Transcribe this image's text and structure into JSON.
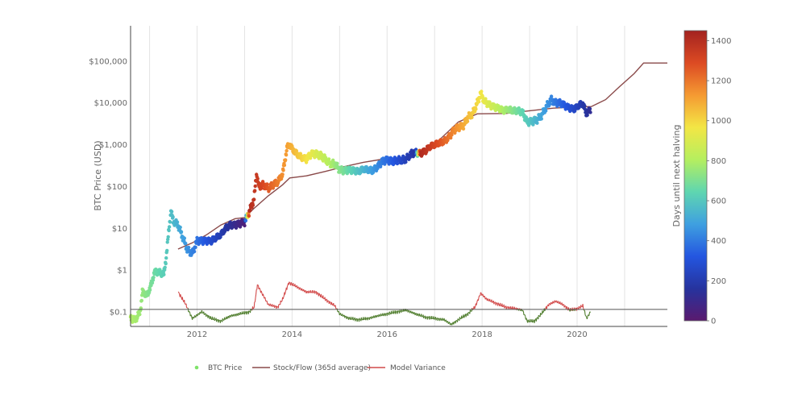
{
  "chart_data": {
    "type": "scatter",
    "title": "",
    "ylabel": "BTC Price (USD)",
    "xlabel": "",
    "ylog": true,
    "ylim": [
      0.045,
      700000
    ],
    "xlim": [
      2010.6,
      2021.9
    ],
    "grid": "vertical",
    "x_ticks": [
      2012,
      2014,
      2016,
      2018,
      2020
    ],
    "x_tick_labels": [
      "2012",
      "2014",
      "2016",
      "2018",
      "2020"
    ],
    "y_ticks": [
      0.1,
      1,
      10,
      100,
      1000,
      10000,
      100000
    ],
    "y_tick_labels": [
      "$0.1",
      "$1",
      "$10",
      "$100",
      "$1,000",
      "$10,000",
      "$100,000"
    ],
    "reference_line": 0.115,
    "colorbar": {
      "label": "Days until next halving",
      "min": 0,
      "max": 1450,
      "ticks": [
        0,
        200,
        400,
        600,
        800,
        1000,
        1200,
        1400
      ],
      "colors": [
        "#5a1a6e",
        "#26339e",
        "#2456e0",
        "#3fa0e0",
        "#5fd6b0",
        "#b5ef5f",
        "#f3e645",
        "#f59a32",
        "#dc4a23",
        "#a32220"
      ]
    },
    "legend_position": "bottom",
    "series": [
      {
        "name": "BTC Price",
        "color": "#7fe36a",
        "style": "markers",
        "points": [
          [
            2010.6,
            0.07,
            800
          ],
          [
            2010.7,
            0.065,
            780
          ],
          [
            2010.8,
            0.1,
            760
          ],
          [
            2010.85,
            0.3,
            745
          ],
          [
            2010.95,
            0.25,
            720
          ],
          [
            2011.05,
            0.5,
            690
          ],
          [
            2011.1,
            0.9,
            670
          ],
          [
            2011.2,
            0.9,
            650
          ],
          [
            2011.3,
            0.8,
            620
          ],
          [
            2011.35,
            2,
            605
          ],
          [
            2011.4,
            8,
            590
          ],
          [
            2011.45,
            25,
            575
          ],
          [
            2011.5,
            15,
            560
          ],
          [
            2011.6,
            12,
            525
          ],
          [
            2011.7,
            6,
            490
          ],
          [
            2011.8,
            3,
            455
          ],
          [
            2011.9,
            2.5,
            420
          ],
          [
            2012.0,
            5,
            385
          ],
          [
            2012.1,
            5,
            350
          ],
          [
            2012.2,
            5,
            315
          ],
          [
            2012.3,
            5,
            280
          ],
          [
            2012.4,
            6,
            245
          ],
          [
            2012.5,
            7,
            210
          ],
          [
            2012.6,
            10,
            175
          ],
          [
            2012.7,
            12,
            140
          ],
          [
            2012.8,
            12,
            105
          ],
          [
            2012.9,
            13,
            70
          ],
          [
            2013.0,
            14,
            40
          ],
          [
            2013.1,
            25,
            1410
          ],
          [
            2013.2,
            50,
            1370
          ],
          [
            2013.25,
            200,
            1350
          ],
          [
            2013.3,
            100,
            1335
          ],
          [
            2013.4,
            110,
            1300
          ],
          [
            2013.5,
            90,
            1260
          ],
          [
            2013.6,
            110,
            1225
          ],
          [
            2013.7,
            130,
            1190
          ],
          [
            2013.8,
            200,
            1150
          ],
          [
            2013.9,
            900,
            1115
          ],
          [
            2013.95,
            1000,
            1100
          ],
          [
            2014.0,
            800,
            1080
          ],
          [
            2014.1,
            600,
            1045
          ],
          [
            2014.2,
            500,
            1010
          ],
          [
            2014.3,
            450,
            975
          ],
          [
            2014.4,
            600,
            940
          ],
          [
            2014.5,
            600,
            900
          ],
          [
            2014.6,
            550,
            870
          ],
          [
            2014.7,
            450,
            830
          ],
          [
            2014.8,
            350,
            800
          ],
          [
            2014.9,
            350,
            760
          ],
          [
            2015.0,
            250,
            720
          ],
          [
            2015.1,
            240,
            690
          ],
          [
            2015.2,
            250,
            650
          ],
          [
            2015.3,
            240,
            615
          ],
          [
            2015.4,
            230,
            580
          ],
          [
            2015.5,
            260,
            545
          ],
          [
            2015.6,
            250,
            510
          ],
          [
            2015.7,
            240,
            475
          ],
          [
            2015.8,
            300,
            440
          ],
          [
            2015.9,
            400,
            400
          ],
          [
            2016.0,
            430,
            370
          ],
          [
            2016.1,
            400,
            335
          ],
          [
            2016.2,
            420,
            300
          ],
          [
            2016.3,
            430,
            265
          ],
          [
            2016.4,
            450,
            225
          ],
          [
            2016.5,
            600,
            190
          ],
          [
            2016.6,
            650,
            160
          ],
          [
            2016.7,
            620,
            1420
          ],
          [
            2016.8,
            700,
            1385
          ],
          [
            2016.9,
            900,
            1350
          ],
          [
            2017.0,
            1000,
            1310
          ],
          [
            2017.1,
            1100,
            1280
          ],
          [
            2017.2,
            1200,
            1240
          ],
          [
            2017.3,
            1500,
            1205
          ],
          [
            2017.4,
            2200,
            1170
          ],
          [
            2017.5,
            2600,
            1135
          ],
          [
            2017.6,
            2800,
            1100
          ],
          [
            2017.7,
            4500,
            1065
          ],
          [
            2017.8,
            5500,
            1030
          ],
          [
            2017.9,
            10000,
            995
          ],
          [
            2017.97,
            17000,
            970
          ],
          [
            2018.05,
            11000,
            935
          ],
          [
            2018.15,
            9000,
            900
          ],
          [
            2018.25,
            8000,
            860
          ],
          [
            2018.35,
            7500,
            825
          ],
          [
            2018.45,
            6500,
            790
          ],
          [
            2018.55,
            7000,
            755
          ],
          [
            2018.65,
            6500,
            720
          ],
          [
            2018.75,
            6500,
            680
          ],
          [
            2018.85,
            6000,
            645
          ],
          [
            2018.95,
            3500,
            610
          ],
          [
            2019.05,
            3600,
            575
          ],
          [
            2019.15,
            3900,
            540
          ],
          [
            2019.25,
            5000,
            505
          ],
          [
            2019.35,
            8000,
            470
          ],
          [
            2019.45,
            12000,
            430
          ],
          [
            2019.55,
            10000,
            395
          ],
          [
            2019.65,
            10000,
            360
          ],
          [
            2019.75,
            8500,
            325
          ],
          [
            2019.85,
            7500,
            290
          ],
          [
            2019.95,
            7200,
            255
          ],
          [
            2020.05,
            9000,
            220
          ],
          [
            2020.12,
            9500,
            190
          ],
          [
            2020.2,
            5500,
            160
          ],
          [
            2020.28,
            7000,
            130
          ]
        ]
      },
      {
        "name": "Stock/Flow (365d average)",
        "color": "#8a4a4a",
        "style": "line",
        "points": [
          [
            2011.6,
            3.2
          ],
          [
            2011.9,
            4.5
          ],
          [
            2012.2,
            7
          ],
          [
            2012.5,
            12
          ],
          [
            2012.8,
            17
          ],
          [
            2013.0,
            18
          ],
          [
            2013.2,
            30
          ],
          [
            2013.5,
            60
          ],
          [
            2013.8,
            110
          ],
          [
            2013.95,
            160
          ],
          [
            2014.3,
            180
          ],
          [
            2014.7,
            230
          ],
          [
            2015.1,
            300
          ],
          [
            2015.5,
            380
          ],
          [
            2015.9,
            450
          ],
          [
            2016.3,
            480
          ],
          [
            2016.5,
            500
          ],
          [
            2016.8,
            700
          ],
          [
            2017.1,
            1300
          ],
          [
            2017.5,
            3500
          ],
          [
            2017.9,
            5500
          ],
          [
            2018.5,
            5600
          ],
          [
            2019.0,
            6500
          ],
          [
            2019.5,
            7500
          ],
          [
            2020.0,
            8000
          ],
          [
            2020.3,
            8200
          ],
          [
            2020.6,
            12000
          ],
          [
            2020.9,
            25000
          ],
          [
            2021.2,
            50000
          ],
          [
            2021.4,
            90000
          ],
          [
            2021.9,
            90000
          ]
        ]
      },
      {
        "name": "Model Variance",
        "color": "#d24a4a",
        "color_below": "#4f7d2d",
        "style": "line",
        "points": [
          [
            2011.6,
            0.3
          ],
          [
            2011.75,
            0.16
          ],
          [
            2011.9,
            0.07
          ],
          [
            2012.1,
            0.1
          ],
          [
            2012.3,
            0.07
          ],
          [
            2012.5,
            0.06
          ],
          [
            2012.7,
            0.08
          ],
          [
            2012.9,
            0.09
          ],
          [
            2013.1,
            0.1
          ],
          [
            2013.2,
            0.13
          ],
          [
            2013.27,
            0.45
          ],
          [
            2013.35,
            0.3
          ],
          [
            2013.5,
            0.15
          ],
          [
            2013.7,
            0.13
          ],
          [
            2013.8,
            0.2
          ],
          [
            2013.93,
            0.5
          ],
          [
            2014.1,
            0.4
          ],
          [
            2014.3,
            0.3
          ],
          [
            2014.5,
            0.3
          ],
          [
            2014.7,
            0.2
          ],
          [
            2014.9,
            0.14
          ],
          [
            2015.0,
            0.09
          ],
          [
            2015.2,
            0.07
          ],
          [
            2015.4,
            0.065
          ],
          [
            2015.6,
            0.07
          ],
          [
            2015.8,
            0.08
          ],
          [
            2016.0,
            0.09
          ],
          [
            2016.2,
            0.1
          ],
          [
            2016.4,
            0.11
          ],
          [
            2016.6,
            0.09
          ],
          [
            2016.8,
            0.075
          ],
          [
            2017.0,
            0.07
          ],
          [
            2017.2,
            0.065
          ],
          [
            2017.35,
            0.05
          ],
          [
            2017.5,
            0.065
          ],
          [
            2017.7,
            0.09
          ],
          [
            2017.85,
            0.13
          ],
          [
            2017.97,
            0.28
          ],
          [
            2018.1,
            0.2
          ],
          [
            2018.3,
            0.16
          ],
          [
            2018.5,
            0.13
          ],
          [
            2018.7,
            0.12
          ],
          [
            2018.85,
            0.11
          ],
          [
            2018.95,
            0.06
          ],
          [
            2019.1,
            0.06
          ],
          [
            2019.25,
            0.09
          ],
          [
            2019.4,
            0.15
          ],
          [
            2019.55,
            0.18
          ],
          [
            2019.7,
            0.15
          ],
          [
            2019.85,
            0.11
          ],
          [
            2020.0,
            0.12
          ],
          [
            2020.12,
            0.14
          ],
          [
            2020.2,
            0.07
          ],
          [
            2020.28,
            0.1
          ]
        ]
      }
    ]
  },
  "legend": {
    "btc_label": "BTC Price",
    "sf_label": "Stock/Flow (365d average)",
    "mv_label": "Model Variance"
  }
}
